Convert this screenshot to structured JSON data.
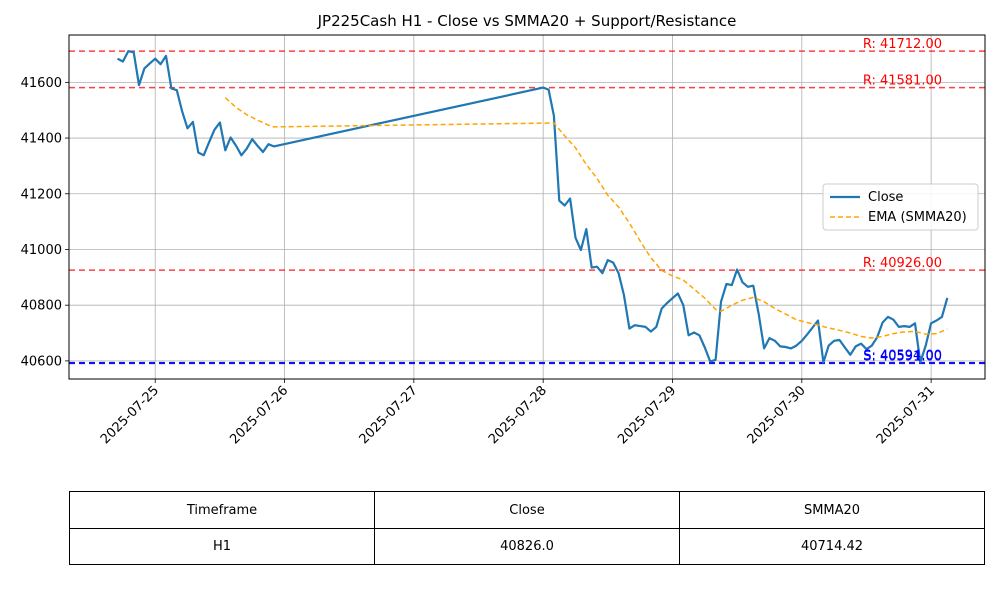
{
  "chart_data": {
    "type": "line",
    "title": "JP225Cash H1 - Close vs SMMA20 + Support/Resistance",
    "xlabel": "",
    "ylabel": "",
    "x_ticks": [
      "2025-07-25",
      "2025-07-26",
      "2025-07-27",
      "2025-07-28",
      "2025-07-29",
      "2025-07-30",
      "2025-07-31"
    ],
    "xlim": [
      "2025-07-24 08:00",
      "2025-07-31 10:00"
    ],
    "y_ticks": [
      40600,
      40800,
      41000,
      41200,
      41400,
      41600
    ],
    "ylim": [
      40535,
      41770
    ],
    "grid": true,
    "legend_position": "center-right",
    "series": [
      {
        "name": "Close",
        "color": "#1f77b4",
        "style": "solid",
        "points": [
          [
            "2025-07-24 17:00",
            41685
          ],
          [
            "2025-07-24 18:00",
            41675
          ],
          [
            "2025-07-24 19:00",
            41712
          ],
          [
            "2025-07-24 20:00",
            41708
          ],
          [
            "2025-07-24 21:00",
            41590
          ],
          [
            "2025-07-24 22:00",
            41650
          ],
          [
            "2025-07-24 23:00",
            41668
          ],
          [
            "2025-07-25 00:00",
            41685
          ],
          [
            "2025-07-25 01:00",
            41665
          ],
          [
            "2025-07-25 02:00",
            41695
          ],
          [
            "2025-07-25 03:00",
            41578
          ],
          [
            "2025-07-25 04:00",
            41572
          ],
          [
            "2025-07-25 05:00",
            41495
          ],
          [
            "2025-07-25 06:00",
            41435
          ],
          [
            "2025-07-25 07:00",
            41458
          ],
          [
            "2025-07-25 08:00",
            41348
          ],
          [
            "2025-07-25 09:00",
            41338
          ],
          [
            "2025-07-25 10:00",
            41385
          ],
          [
            "2025-07-25 11:00",
            41430
          ],
          [
            "2025-07-25 12:00",
            41456
          ],
          [
            "2025-07-25 13:00",
            41356
          ],
          [
            "2025-07-25 14:00",
            41402
          ],
          [
            "2025-07-25 15:00",
            41373
          ],
          [
            "2025-07-25 16:00",
            41338
          ],
          [
            "2025-07-25 17:00",
            41362
          ],
          [
            "2025-07-25 18:00",
            41396
          ],
          [
            "2025-07-25 19:00",
            41372
          ],
          [
            "2025-07-25 20:00",
            41350
          ],
          [
            "2025-07-25 21:00",
            41378
          ],
          [
            "2025-07-25 22:00",
            41370
          ],
          [
            "2025-07-28 00:00",
            41581
          ],
          [
            "2025-07-28 01:00",
            41574
          ],
          [
            "2025-07-28 02:00",
            41480
          ],
          [
            "2025-07-28 03:00",
            41175
          ],
          [
            "2025-07-28 04:00",
            41158
          ],
          [
            "2025-07-28 05:00",
            41183
          ],
          [
            "2025-07-28 06:00",
            41042
          ],
          [
            "2025-07-28 07:00",
            40998
          ],
          [
            "2025-07-28 08:00",
            41073
          ],
          [
            "2025-07-28 09:00",
            40935
          ],
          [
            "2025-07-28 10:00",
            40938
          ],
          [
            "2025-07-28 11:00",
            40915
          ],
          [
            "2025-07-28 12:00",
            40962
          ],
          [
            "2025-07-28 13:00",
            40953
          ],
          [
            "2025-07-28 14:00",
            40915
          ],
          [
            "2025-07-28 15:00",
            40835
          ],
          [
            "2025-07-28 16:00",
            40716
          ],
          [
            "2025-07-28 17:00",
            40728
          ],
          [
            "2025-07-28 18:00",
            40725
          ],
          [
            "2025-07-28 19:00",
            40722
          ],
          [
            "2025-07-28 20:00",
            40705
          ],
          [
            "2025-07-28 21:00",
            40722
          ],
          [
            "2025-07-28 22:00",
            40788
          ],
          [
            "2025-07-28 23:00",
            40808
          ],
          [
            "2025-07-29 00:00",
            40825
          ],
          [
            "2025-07-29 01:00",
            40842
          ],
          [
            "2025-07-29 02:00",
            40800
          ],
          [
            "2025-07-29 03:00",
            40692
          ],
          [
            "2025-07-29 04:00",
            40702
          ],
          [
            "2025-07-29 05:00",
            40692
          ],
          [
            "2025-07-29 06:00",
            40648
          ],
          [
            "2025-07-29 07:00",
            40598
          ],
          [
            "2025-07-29 08:00",
            40604
          ],
          [
            "2025-07-29 09:00",
            40812
          ],
          [
            "2025-07-29 10:00",
            40876
          ],
          [
            "2025-07-29 11:00",
            40872
          ],
          [
            "2025-07-29 12:00",
            40928
          ],
          [
            "2025-07-29 13:00",
            40882
          ],
          [
            "2025-07-29 14:00",
            40866
          ],
          [
            "2025-07-29 15:00",
            40870
          ],
          [
            "2025-07-29 16:00",
            40768
          ],
          [
            "2025-07-29 17:00",
            40645
          ],
          [
            "2025-07-29 18:00",
            40682
          ],
          [
            "2025-07-29 19:00",
            40672
          ],
          [
            "2025-07-29 20:00",
            40652
          ],
          [
            "2025-07-29 21:00",
            40650
          ],
          [
            "2025-07-29 22:00",
            40645
          ],
          [
            "2025-07-29 23:00",
            40655
          ],
          [
            "2025-07-30 00:00",
            40672
          ],
          [
            "2025-07-30 01:00",
            40695
          ],
          [
            "2025-07-30 02:00",
            40720
          ],
          [
            "2025-07-30 03:00",
            40745
          ],
          [
            "2025-07-30 04:00",
            40595
          ],
          [
            "2025-07-30 05:00",
            40655
          ],
          [
            "2025-07-30 06:00",
            40672
          ],
          [
            "2025-07-30 07:00",
            40675
          ],
          [
            "2025-07-30 08:00",
            40648
          ],
          [
            "2025-07-30 09:00",
            40622
          ],
          [
            "2025-07-30 10:00",
            40652
          ],
          [
            "2025-07-30 11:00",
            40662
          ],
          [
            "2025-07-30 12:00",
            40642
          ],
          [
            "2025-07-30 13:00",
            40655
          ],
          [
            "2025-07-30 14:00",
            40685
          ],
          [
            "2025-07-30 15:00",
            40738
          ],
          [
            "2025-07-30 16:00",
            40758
          ],
          [
            "2025-07-30 17:00",
            40748
          ],
          [
            "2025-07-30 18:00",
            40722
          ],
          [
            "2025-07-30 19:00",
            40725
          ],
          [
            "2025-07-30 20:00",
            40722
          ],
          [
            "2025-07-30 21:00",
            40735
          ],
          [
            "2025-07-30 22:00",
            40595
          ],
          [
            "2025-07-30 23:00",
            40655
          ],
          [
            "2025-07-31 00:00",
            40735
          ],
          [
            "2025-07-31 01:00",
            40745
          ],
          [
            "2025-07-31 02:00",
            40758
          ],
          [
            "2025-07-31 03:00",
            40826
          ]
        ]
      },
      {
        "name": "EMA (SMMA20)",
        "color": "#ffa500",
        "style": "dashed",
        "points": [
          [
            "2025-07-25 13:00",
            41545
          ],
          [
            "2025-07-25 15:00",
            41510
          ],
          [
            "2025-07-25 17:00",
            41484
          ],
          [
            "2025-07-25 19:00",
            41464
          ],
          [
            "2025-07-25 21:00",
            41446
          ],
          [
            "2025-07-25 22:00",
            41440
          ],
          [
            "2025-07-28 02:00",
            41454
          ],
          [
            "2025-07-28 04:00",
            41408
          ],
          [
            "2025-07-28 06:00",
            41365
          ],
          [
            "2025-07-28 08:00",
            41305
          ],
          [
            "2025-07-28 10:00",
            41255
          ],
          [
            "2025-07-28 12:00",
            41195
          ],
          [
            "2025-07-28 14:00",
            41152
          ],
          [
            "2025-07-28 16:00",
            41095
          ],
          [
            "2025-07-28 18:00",
            41030
          ],
          [
            "2025-07-28 20:00",
            40970
          ],
          [
            "2025-07-28 22:00",
            40925
          ],
          [
            "2025-07-29 00:00",
            40905
          ],
          [
            "2025-07-29 02:00",
            40890
          ],
          [
            "2025-07-29 04:00",
            40858
          ],
          [
            "2025-07-29 06:00",
            40825
          ],
          [
            "2025-07-29 08:00",
            40785
          ],
          [
            "2025-07-29 09:00",
            40778
          ],
          [
            "2025-07-29 11:00",
            40800
          ],
          [
            "2025-07-29 13:00",
            40818
          ],
          [
            "2025-07-29 15:00",
            40828
          ],
          [
            "2025-07-29 17:00",
            40812
          ],
          [
            "2025-07-29 19:00",
            40788
          ],
          [
            "2025-07-29 21:00",
            40768
          ],
          [
            "2025-07-29 23:00",
            40748
          ],
          [
            "2025-07-30 01:00",
            40738
          ],
          [
            "2025-07-30 03:00",
            40728
          ],
          [
            "2025-07-30 05:00",
            40718
          ],
          [
            "2025-07-30 07:00",
            40710
          ],
          [
            "2025-07-30 09:00",
            40700
          ],
          [
            "2025-07-30 11:00",
            40688
          ],
          [
            "2025-07-30 13:00",
            40682
          ],
          [
            "2025-07-30 15:00",
            40688
          ],
          [
            "2025-07-30 17:00",
            40698
          ],
          [
            "2025-07-30 19:00",
            40704
          ],
          [
            "2025-07-30 21:00",
            40706
          ],
          [
            "2025-07-30 23:00",
            40696
          ],
          [
            "2025-07-31 01:00",
            40698
          ],
          [
            "2025-07-31 03:00",
            40714
          ]
        ]
      }
    ],
    "levels": [
      {
        "kind": "resistance",
        "value": 41712,
        "label": "R: 41712.00",
        "color": "#ff0000"
      },
      {
        "kind": "resistance",
        "value": 41581,
        "label": "R: 41581.00",
        "color": "#ff0000"
      },
      {
        "kind": "resistance",
        "value": 40926,
        "label": "R: 40926.00",
        "color": "#ff0000"
      },
      {
        "kind": "support",
        "value": 40594,
        "label": "S: 40594.00",
        "color": "#0000ff"
      },
      {
        "kind": "support",
        "value": 40591,
        "label": "S: 40591.00",
        "color": "#0000ff"
      }
    ]
  },
  "table": {
    "headers": [
      "Timeframe",
      "Close",
      "SMMA20"
    ],
    "rows": [
      [
        "H1",
        "40826.0",
        "40714.42"
      ]
    ]
  }
}
